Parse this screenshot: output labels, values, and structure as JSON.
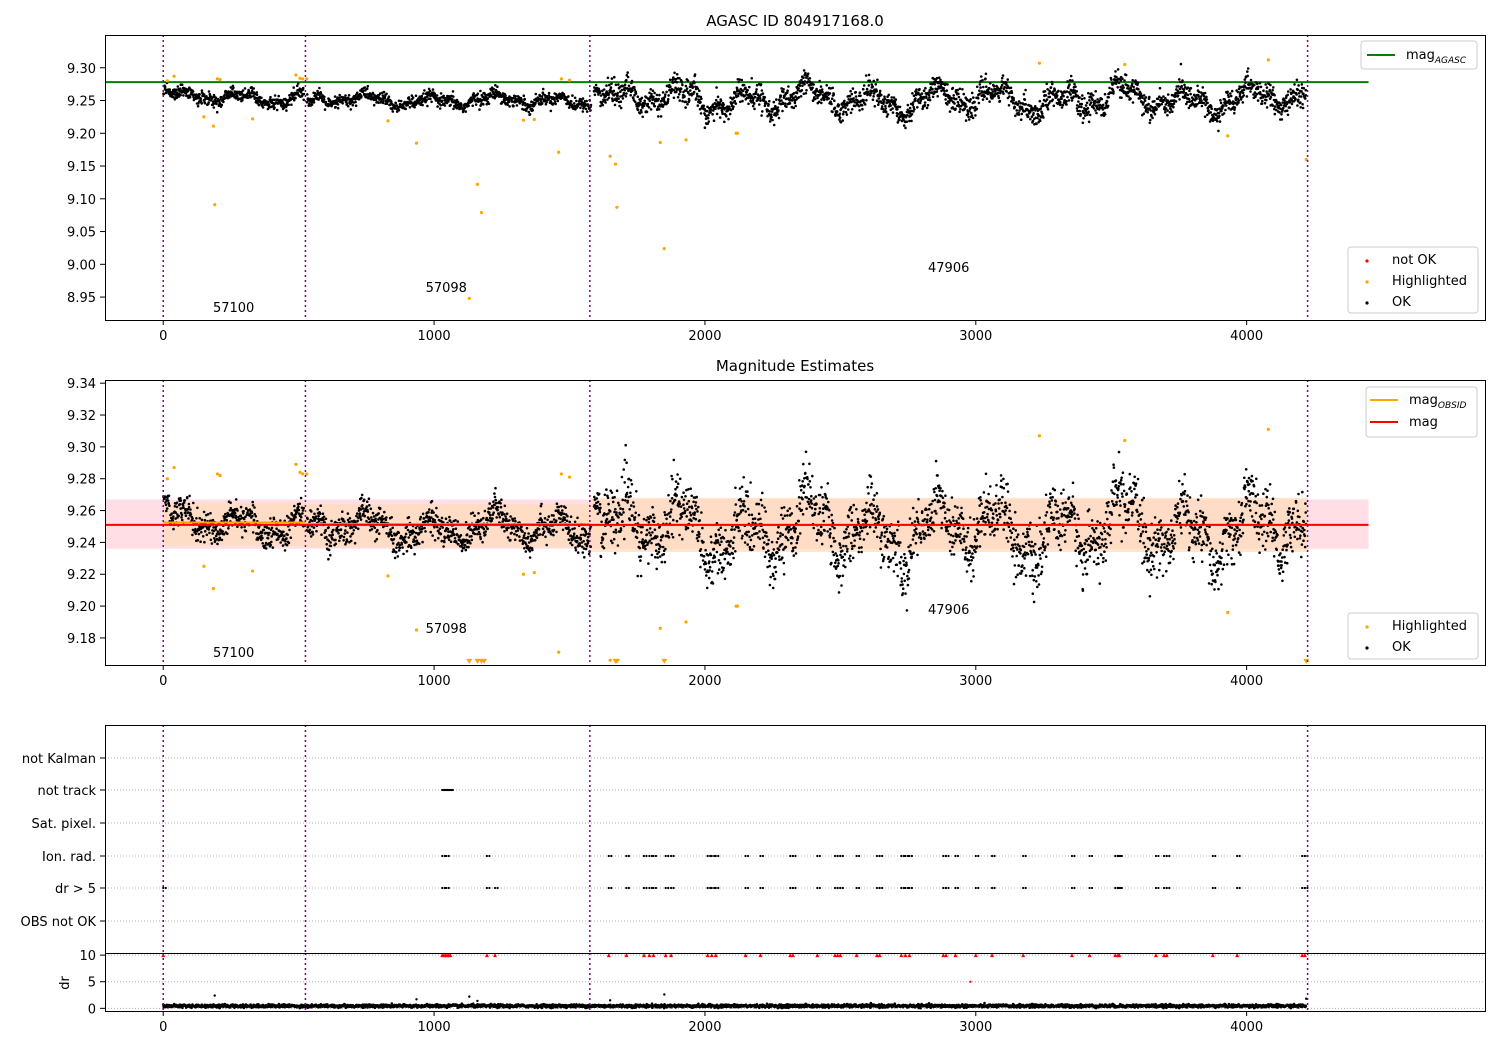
{
  "figure": {
    "title": "AGASC ID 804917168.0"
  },
  "colors": {
    "ok": "#000000",
    "highlighted": "#ffa500",
    "not_ok": "#ff0000",
    "mag_agasc": "#008000",
    "mag_obsid": "#ffa500",
    "mag": "#ff0000",
    "obsid_boundary": "#800080",
    "band_obsid": "#ffdab9",
    "band_mag": "#ffc0cb",
    "grid": "#b0b0b0"
  },
  "chart_data": [
    {
      "id": "agasc-mag",
      "type": "scatter",
      "title": "AGASC ID 804917168.0",
      "xlabel": "",
      "ylabel": "",
      "xlim": [
        -215,
        4880
      ],
      "ylim": [
        8.915,
        9.35
      ],
      "xticks": [
        0,
        1000,
        2000,
        3000,
        4000
      ],
      "yticks": [
        8.95,
        9.0,
        9.05,
        9.1,
        9.15,
        9.2,
        9.25,
        9.3
      ],
      "ytick_labels": [
        "8.95",
        "9.00",
        "9.05",
        "9.10",
        "9.15",
        "9.20",
        "9.25",
        "9.30"
      ],
      "grid": false,
      "legend_upper": {
        "placement": "top-right",
        "entries": [
          "mag<sub>AGASC</sub>"
        ]
      },
      "legend_lower": {
        "placement": "bottom-right",
        "entries": [
          "not OK",
          "Highlighted",
          "OK"
        ]
      },
      "series": [
        {
          "name": "mag_AGASC",
          "kind": "hline",
          "value": 9.278,
          "x_range": [
            -215,
            4450
          ]
        },
        {
          "name": "OK",
          "kind": "points",
          "segments": [
            [
              0,
              520,
              9.255,
              0.009,
              9.265
            ],
            [
              530,
              1580,
              9.25,
              0.009,
              9.25
            ],
            [
              1590,
              4220,
              9.252,
              0.016,
              9.265
            ]
          ]
        },
        {
          "name": "Highlighted",
          "kind": "points",
          "x": [
            15,
            40,
            150,
            185,
            190,
            200,
            210,
            330,
            490,
            505,
            515,
            530,
            830,
            935,
            1130,
            1160,
            1175,
            1330,
            1370,
            1460,
            1470,
            1500,
            1650,
            1670,
            1675,
            1835,
            1850,
            1930,
            2115,
            2120,
            3235,
            3550,
            3930,
            4080,
            4220
          ],
          "y": [
            9.28,
            9.287,
            9.225,
            9.211,
            9.091,
            9.283,
            9.282,
            9.222,
            9.289,
            9.284,
            9.283,
            9.283,
            9.219,
            9.185,
            8.948,
            9.122,
            9.079,
            9.22,
            9.221,
            9.171,
            9.283,
            9.281,
            9.165,
            9.153,
            9.087,
            9.186,
            9.024,
            9.19,
            9.2,
            9.2,
            9.307,
            9.305,
            9.196,
            9.312,
            9.16
          ]
        },
        {
          "name": "not OK",
          "kind": "points",
          "x": [],
          "y": []
        }
      ],
      "boundaries": [
        0,
        525,
        1575,
        4225
      ],
      "annotations": [
        {
          "text": "57100",
          "x": 260,
          "y": 8.927
        },
        {
          "text": "57098",
          "x": 1045,
          "y": 8.958
        },
        {
          "text": "47906",
          "x": 2900,
          "y": 8.988
        }
      ]
    },
    {
      "id": "mag-estimates",
      "type": "scatter",
      "title": "Magnitude Estimates",
      "xlabel": "",
      "ylabel": "",
      "xlim": [
        -215,
        4880
      ],
      "ylim": [
        9.163,
        9.342
      ],
      "xticks": [
        0,
        1000,
        2000,
        3000,
        4000
      ],
      "yticks": [
        9.18,
        9.2,
        9.22,
        9.24,
        9.26,
        9.28,
        9.3,
        9.32,
        9.34
      ],
      "ytick_labels": [
        "9.18",
        "9.20",
        "9.22",
        "9.24",
        "9.26",
        "9.28",
        "9.30",
        "9.32",
        "9.34"
      ],
      "grid": false,
      "legend_upper": {
        "placement": "top-right",
        "entries": [
          "mag<sub>OBSID</sub>",
          "mag"
        ]
      },
      "legend_lower": {
        "placement": "bottom-right",
        "entries": [
          "Highlighted",
          "OK"
        ]
      },
      "bands": [
        {
          "name": "mag",
          "x_range": [
            -215,
            4450
          ],
          "y_range": [
            9.236,
            9.267
          ]
        },
        {
          "name": "mag_OBSID",
          "segments": [
            [
              0,
              525,
              9.238,
              9.265
            ],
            [
              525,
              1575,
              9.237,
              9.264
            ],
            [
              1575,
              4225,
              9.234,
              9.268
            ]
          ]
        }
      ],
      "series": [
        {
          "name": "mag",
          "kind": "hline",
          "value": 9.251,
          "x_range": [
            -215,
            4450
          ]
        },
        {
          "name": "mag_OBSID",
          "kind": "steps",
          "segments": [
            [
              0,
              525,
              9.2525
            ],
            [
              525,
              1575,
              9.2515
            ],
            [
              1575,
              4225,
              9.251
            ]
          ]
        },
        {
          "name": "OK",
          "kind": "points",
          "segments": [
            [
              0,
              520,
              9.252,
              0.0085,
              9.266
            ],
            [
              530,
              1580,
              9.249,
              0.0085,
              9.25
            ],
            [
              1590,
              4220,
              9.248,
              0.016,
              9.265
            ]
          ]
        },
        {
          "name": "Highlighted",
          "kind": "points",
          "x": [
            15,
            40,
            150,
            185,
            200,
            210,
            330,
            490,
            505,
            515,
            530,
            830,
            935,
            1130,
            1160,
            1175,
            1185,
            1330,
            1370,
            1460,
            1470,
            1500,
            1650,
            1670,
            1675,
            1835,
            1850,
            1930,
            2115,
            2120,
            3235,
            3550,
            3930,
            4080,
            4220
          ],
          "y": [
            9.28,
            9.287,
            9.225,
            9.211,
            9.283,
            9.282,
            9.222,
            9.289,
            9.284,
            9.283,
            9.283,
            9.219,
            9.185,
            9.165,
            9.165,
            9.165,
            9.165,
            9.22,
            9.221,
            9.171,
            9.283,
            9.281,
            9.166,
            9.165,
            9.165,
            9.186,
            9.165,
            9.19,
            9.2,
            9.2,
            9.307,
            9.304,
            9.196,
            9.311,
            9.165
          ]
        }
      ],
      "boundaries": [
        0,
        525,
        1575,
        4225
      ],
      "annotations": [
        {
          "text": "57100",
          "x": 260,
          "y": 9.168
        },
        {
          "text": "57098",
          "x": 1045,
          "y": 9.183
        },
        {
          "text": "47906",
          "x": 2900,
          "y": 9.195
        }
      ]
    },
    {
      "id": "flags",
      "type": "scatter",
      "xlabel": "",
      "ylabel": "",
      "xlim": [
        -215,
        4880
      ],
      "categories": [
        "not Kalman",
        "not track",
        "Sat. pixel.",
        "Ion. rad.",
        "dr > 5",
        "OBS not OK"
      ],
      "grid": "horizontal dotted",
      "flag_events": {
        "not track": [
          1030,
          1036,
          1042,
          1048,
          1054,
          1060
        ],
        "Ion. rad.": [
          1030,
          1045,
          1195,
          1645,
          1710,
          1775,
          1795,
          1810,
          1855,
          1875,
          2010,
          2025,
          2040,
          2150,
          2205,
          2315,
          2325,
          2415,
          2480,
          2490,
          2500,
          2560,
          2635,
          2645,
          2725,
          2740,
          2755,
          2880,
          2890,
          2925,
          3000,
          3060,
          3175,
          3355,
          3420,
          3515,
          3525,
          3530,
          3665,
          3695,
          3705,
          3875,
          3965,
          4205,
          4215
        ],
        "dr > 5": [
          0,
          1030,
          1045,
          1195,
          1225,
          1645,
          1710,
          1775,
          1795,
          1810,
          1855,
          1875,
          2010,
          2025,
          2040,
          2150,
          2205,
          2315,
          2325,
          2415,
          2480,
          2490,
          2500,
          2560,
          2635,
          2645,
          2725,
          2740,
          2755,
          2880,
          2890,
          2925,
          3000,
          3060,
          3175,
          3355,
          3420,
          3515,
          3525,
          3530,
          3665,
          3695,
          3705,
          3875,
          3965,
          4205,
          4215
        ]
      },
      "boundaries": [
        0,
        525,
        1575,
        4225
      ]
    },
    {
      "id": "dr",
      "type": "scatter",
      "xlabel": "",
      "ylabel": "dr",
      "xlim": [
        -215,
        4880
      ],
      "ylim": [
        -0.5,
        10.4
      ],
      "xticks": [
        0,
        1000,
        2000,
        3000,
        4000
      ],
      "yticks": [
        0,
        5,
        10
      ],
      "ytick_labels": [
        "0",
        "5",
        "10"
      ],
      "grid": "horizontal dotted",
      "series": [
        {
          "name": "OK",
          "kind": "points",
          "range": [
            0,
            4220
          ],
          "mean": 0.45,
          "spread": 0.25
        },
        {
          "name": "outliers",
          "kind": "points",
          "x": [
            190,
            935,
            1130,
            1160,
            1850,
            1650,
            4220
          ],
          "y": [
            2.4,
            1.7,
            2.2,
            1.4,
            2.6,
            1.5,
            1.8
          ]
        },
        {
          "name": "not OK",
          "kind": "points",
          "y_value": 10,
          "x": [
            0,
            1030,
            1036,
            1042,
            1048,
            1054,
            1060,
            1195,
            1225,
            1645,
            1710,
            1775,
            1795,
            1810,
            1855,
            1875,
            2010,
            2025,
            2040,
            2150,
            2205,
            2315,
            2325,
            2415,
            2480,
            2490,
            2500,
            2560,
            2635,
            2645,
            2725,
            2740,
            2755,
            2880,
            2890,
            2925,
            3000,
            3060,
            3175,
            3355,
            3420,
            3515,
            3525,
            3530,
            3665,
            3695,
            3705,
            3875,
            3965,
            4205,
            4215
          ]
        },
        {
          "name": "stray",
          "kind": "points",
          "x": [
            2980
          ],
          "y": [
            5.0
          ]
        }
      ],
      "boundaries": [
        0,
        525,
        1575,
        4225
      ]
    }
  ]
}
